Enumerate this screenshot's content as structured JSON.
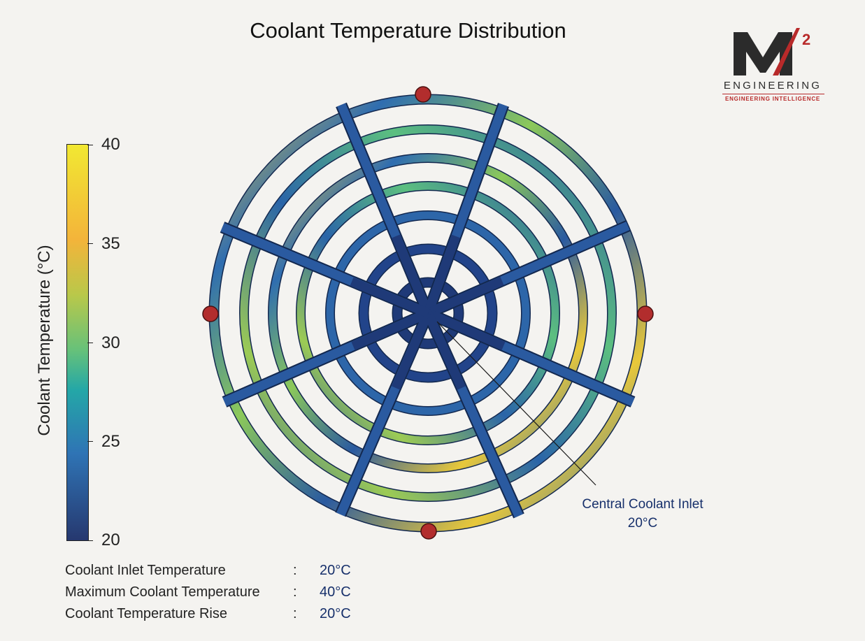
{
  "title": "Coolant Temperature Distribution",
  "logo": {
    "mark": "M",
    "superscript": "2",
    "word": "ENGINEERING",
    "tagline": "ENGINEERING INTELLIGENCE",
    "colors": {
      "dark": "#2b2b2b",
      "accent": "#b82a2a"
    }
  },
  "colorbar": {
    "label": "Coolant Temperature (°C)",
    "ticks": [
      "40",
      "35",
      "30",
      "25",
      "20"
    ],
    "range": [
      20,
      40
    ],
    "colormap": "viridis-like (dark blue to yellow)"
  },
  "callout": {
    "line1": "Central Coolant Inlet",
    "line2": "20°C"
  },
  "stats": [
    {
      "label": "Coolant Inlet Temperature",
      "value": "20°C"
    },
    {
      "label": "Maximum Coolant Temperature",
      "value": "40°C"
    },
    {
      "label": "Coolant Temperature Rise",
      "value": "20°C"
    }
  ],
  "colors": {
    "channel_cool": "#2a5aa0",
    "channel_dark": "#1f3a78",
    "channel_warm": "#f0c83c",
    "outlet_marker": "#b22d2d",
    "background": "#f4f3f0"
  }
}
